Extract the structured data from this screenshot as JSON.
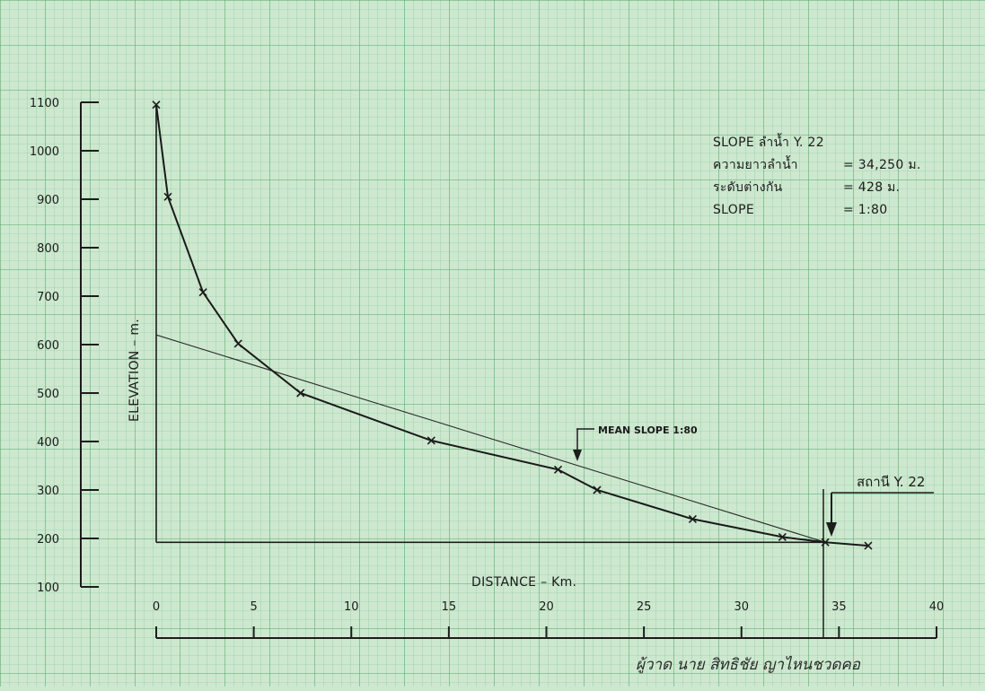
{
  "chart_data": {
    "type": "line",
    "title": "",
    "xlabel": "DISTANCE – Km.",
    "ylabel": "ELEVATION – m.",
    "xlim": [
      0,
      40
    ],
    "ylim": [
      100,
      1100
    ],
    "x_ticks": [
      "0",
      "5",
      "10",
      "15",
      "20",
      "25",
      "30",
      "35",
      "40"
    ],
    "y_ticks": [
      "1100",
      "1000",
      "900",
      "800",
      "700",
      "600",
      "500",
      "400",
      "300",
      "200",
      "100"
    ],
    "grid": true,
    "series": [
      {
        "values": [
          [
            0,
            1095
          ],
          [
            0.6,
            905
          ],
          [
            2.4,
            708
          ],
          [
            4.2,
            602
          ],
          [
            7.4,
            500
          ],
          [
            14.1,
            402
          ],
          [
            20.6,
            342
          ],
          [
            22.6,
            300
          ],
          [
            27.5,
            240
          ],
          [
            32.1,
            203
          ],
          [
            34.3,
            192
          ],
          [
            36.5,
            185
          ]
        ]
      },
      {
        "values": [
          [
            0,
            620
          ],
          [
            34.3,
            192
          ]
        ]
      }
    ],
    "baseline": {
      "x": [
        0,
        34.3
      ],
      "y": 192
    },
    "annotations": {
      "mean_slope": "MEAN SLOPE 1:80",
      "station": "สถานี Y. 22"
    },
    "info_box": [
      {
        "label": "SLOPE  ลำน้ำ Y. 22",
        "value": ""
      },
      {
        "label": "ความยาวลำน้ำ",
        "value": "=  34,250  ม."
      },
      {
        "label": "ระดับต่างกัน",
        "value": "=       428  ม."
      },
      {
        "label": "SLOPE",
        "value": "=  1:80"
      }
    ],
    "signature": "ผู้วาด  นาย สิทธิชัย  ญาไหนชวดคอ"
  }
}
